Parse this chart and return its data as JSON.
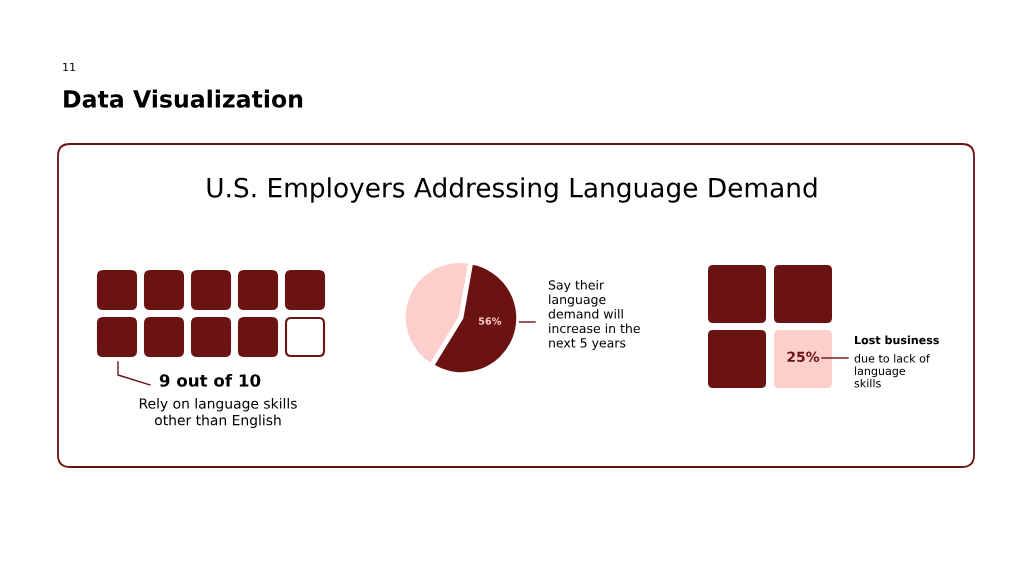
{
  "chart_data": [
    {
      "type": "other",
      "title": "Data Visualization",
      "subtitle": "U.S. Employers Addressing Language Demand",
      "annotations": [
        "11"
      ]
    },
    {
      "type": "other",
      "annotations": [
        "9 out of 10",
        "Rely on language skills\nother than English"
      ]
    },
    {
      "type": "pie",
      "categories": [
        null,
        null
      ],
      "values": [
        56,
        44
      ],
      "colors": [
        "#6b1313",
        "#fccfcc"
      ],
      "value_labels": [
        "56%",
        null
      ],
      "annotations": [
        "Say their\nlanguage\ndemand will\nincrease in the\nnext 5 years"
      ]
    },
    {
      "type": "other",
      "annotations": [
        "25%",
        "Lost business",
        "due to lack of\nlanguage\nskills"
      ]
    }
  ]
}
